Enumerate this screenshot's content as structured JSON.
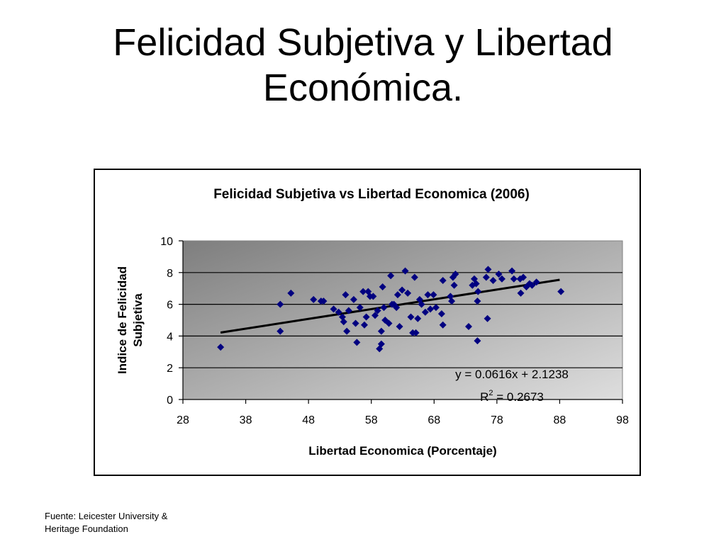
{
  "slide": {
    "title_lines": [
      "Felicidad Subjetiva y Libertad",
      "Económica."
    ],
    "source_lines": [
      "Fuente: Leicester University &",
      "Heritage Foundation"
    ]
  },
  "chart_data": {
    "type": "scatter",
    "title": "Felicidad Subjetiva vs Libertad Economica (2006)",
    "xlabel": "Libertad Economica (Porcentaje)",
    "ylabel_lines": [
      "Indice de Felicidad",
      "Subjetiva"
    ],
    "xlim": [
      28,
      98
    ],
    "ylim": [
      0,
      10
    ],
    "xticks": [
      28,
      38,
      48,
      58,
      68,
      78,
      88,
      98
    ],
    "yticks": [
      0,
      2,
      4,
      6,
      8,
      10
    ],
    "grid": true,
    "legend": "none",
    "marker_color": "#000080",
    "trendline": {
      "slope": 0.0616,
      "intercept": 2.1238,
      "x_range": [
        34,
        88
      ],
      "equation": "y = 0.0616x + 2.1238",
      "r2_prefix": "R",
      "r2_sup": "2",
      "r2_suffix": " = 0.2673"
    },
    "points": [
      [
        34.0,
        3.3
      ],
      [
        43.5,
        6.0
      ],
      [
        43.5,
        4.3
      ],
      [
        45.2,
        6.7
      ],
      [
        48.8,
        6.3
      ],
      [
        50.0,
        6.2
      ],
      [
        50.4,
        6.2
      ],
      [
        52.0,
        5.7
      ],
      [
        52.8,
        5.5
      ],
      [
        53.4,
        5.2
      ],
      [
        53.6,
        4.9
      ],
      [
        53.9,
        6.6
      ],
      [
        54.1,
        4.3
      ],
      [
        54.4,
        5.6
      ],
      [
        55.2,
        6.3
      ],
      [
        55.5,
        4.8
      ],
      [
        55.7,
        3.6
      ],
      [
        56.2,
        5.8
      ],
      [
        56.7,
        6.8
      ],
      [
        56.9,
        4.7
      ],
      [
        57.2,
        5.2
      ],
      [
        57.5,
        6.8
      ],
      [
        57.8,
        6.5
      ],
      [
        58.3,
        6.5
      ],
      [
        58.6,
        5.3
      ],
      [
        59.0,
        5.6
      ],
      [
        59.3,
        3.2
      ],
      [
        59.6,
        3.5
      ],
      [
        59.6,
        4.3
      ],
      [
        59.8,
        7.1
      ],
      [
        60.0,
        5.8
      ],
      [
        60.2,
        5.0
      ],
      [
        60.8,
        4.8
      ],
      [
        61.1,
        7.8
      ],
      [
        61.3,
        6.0
      ],
      [
        61.6,
        6.0
      ],
      [
        62.0,
        5.8
      ],
      [
        62.2,
        6.6
      ],
      [
        62.5,
        4.6
      ],
      [
        62.9,
        6.9
      ],
      [
        63.4,
        8.1
      ],
      [
        63.8,
        6.7
      ],
      [
        64.3,
        5.2
      ],
      [
        64.6,
        4.2
      ],
      [
        64.9,
        7.7
      ],
      [
        65.1,
        4.2
      ],
      [
        65.4,
        5.1
      ],
      [
        65.7,
        6.3
      ],
      [
        66.0,
        6.0
      ],
      [
        66.6,
        5.5
      ],
      [
        67.0,
        6.6
      ],
      [
        67.4,
        5.7
      ],
      [
        67.9,
        6.6
      ],
      [
        68.3,
        5.8
      ],
      [
        69.2,
        5.4
      ],
      [
        69.4,
        7.5
      ],
      [
        69.4,
        4.7
      ],
      [
        70.6,
        6.5
      ],
      [
        70.8,
        6.2
      ],
      [
        71.0,
        7.7
      ],
      [
        71.2,
        7.2
      ],
      [
        71.4,
        7.9
      ],
      [
        73.5,
        4.6
      ],
      [
        74.1,
        7.2
      ],
      [
        74.4,
        7.6
      ],
      [
        74.7,
        7.3
      ],
      [
        74.9,
        6.2
      ],
      [
        74.9,
        3.7
      ],
      [
        75.0,
        6.8
      ],
      [
        76.3,
        7.7
      ],
      [
        76.6,
        8.2
      ],
      [
        76.5,
        5.1
      ],
      [
        77.4,
        7.5
      ],
      [
        78.3,
        7.9
      ],
      [
        78.8,
        7.6
      ],
      [
        80.4,
        8.1
      ],
      [
        80.7,
        7.6
      ],
      [
        81.7,
        7.6
      ],
      [
        81.8,
        6.7
      ],
      [
        82.2,
        7.7
      ],
      [
        82.7,
        7.1
      ],
      [
        83.2,
        7.3
      ],
      [
        83.6,
        7.2
      ],
      [
        84.3,
        7.4
      ],
      [
        88.2,
        6.8
      ]
    ]
  }
}
